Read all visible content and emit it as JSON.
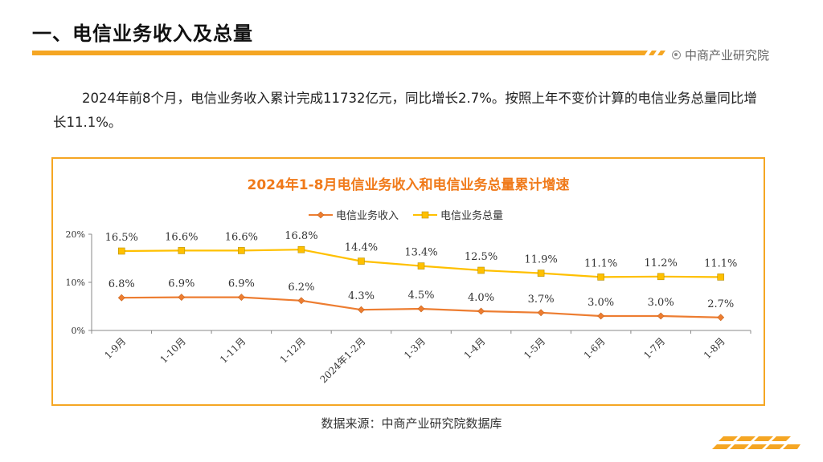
{
  "page": {
    "title": "一、电信业务收入及总量",
    "brand": "中商产业研究院",
    "paragraph": "2024年前8个月，电信业务收入累计完成11732亿元，同比增长2.7%。按照上年不变价计算的电信业务总量同比增长11.1%。",
    "source": "数据来源：中商产业研究院数据库",
    "accent_color": "#f5a623",
    "icon": "target-circle-icon"
  },
  "chart_data": {
    "type": "line",
    "title": "2024年1-8月电信业务收入和电信业务总量累计增速",
    "categories": [
      "1-9月",
      "1-10月",
      "1-11月",
      "1-12月",
      "2024年1-2月",
      "1-3月",
      "1-4月",
      "1-5月",
      "1-6月",
      "1-7月",
      "1-8月"
    ],
    "series": [
      {
        "name": "电信业务收入",
        "color": "#ed7d31",
        "marker": "diamond",
        "values": [
          6.8,
          6.9,
          6.9,
          6.2,
          4.3,
          4.5,
          4.0,
          3.7,
          3.0,
          3.0,
          2.7
        ],
        "labels": [
          "6.8%",
          "6.9%",
          "6.9%",
          "6.2%",
          "4.3%",
          "4.5%",
          "4.0%",
          "3.7%",
          "3.0%",
          "3.0%",
          "2.7%"
        ]
      },
      {
        "name": "电信业务总量",
        "color": "#ffc000",
        "marker": "square",
        "values": [
          16.5,
          16.6,
          16.6,
          16.8,
          14.4,
          13.4,
          12.5,
          11.9,
          11.1,
          11.2,
          11.1
        ],
        "labels": [
          "16.5%",
          "16.6%",
          "16.6%",
          "16.8%",
          "14.4%",
          "13.4%",
          "12.5%",
          "11.9%",
          "11.1%",
          "11.2%",
          "11.1%"
        ]
      }
    ],
    "y_ticks": [
      "20%",
      "10%",
      "0%"
    ],
    "y_tick_values": [
      20,
      10,
      0
    ],
    "ylim": [
      0,
      20
    ],
    "legend": "top-center",
    "grid": false
  }
}
